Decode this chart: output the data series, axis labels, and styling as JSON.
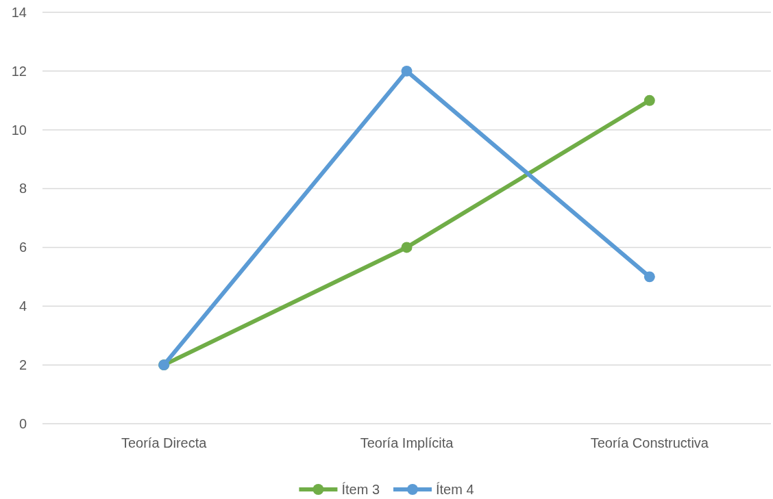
{
  "chart_data": {
    "type": "line",
    "categories": [
      "Teoría Directa",
      "Teoría Implícita",
      "Teoría Constructiva"
    ],
    "series": [
      {
        "name": "Ítem 3",
        "color": "#70ad47",
        "values": [
          2,
          6,
          11
        ]
      },
      {
        "name": "Ítem 4",
        "color": "#5b9bd5",
        "values": [
          2,
          12,
          5
        ]
      }
    ],
    "ylim": [
      0,
      14
    ],
    "yticks": [
      0,
      2,
      4,
      6,
      8,
      10,
      12,
      14
    ],
    "grid": "y",
    "legend": "bottom",
    "marker": "circle",
    "line_style": "solid"
  }
}
